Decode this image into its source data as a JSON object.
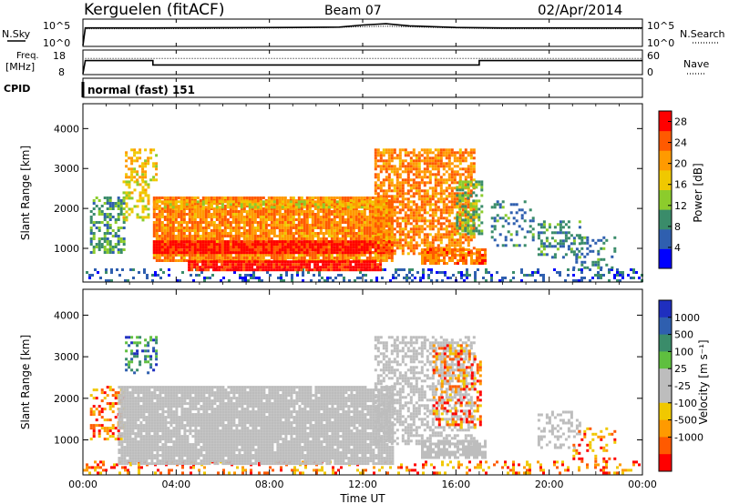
{
  "header": {
    "station": "Kerguelen (fitACF)",
    "beam": "Beam 07",
    "date": "02/Apr/2014"
  },
  "noise_panel": {
    "left_label": "N.Sky",
    "left_ticks": [
      "10^5",
      "10^0"
    ],
    "right_label": "N.Search",
    "right_ticks": [
      "10^5",
      "10^0"
    ]
  },
  "freq_panel": {
    "left_label_1": "Freq.",
    "left_label_2": "[MHz]",
    "left_ticks": [
      "18",
      "8"
    ],
    "right_label": "Nave",
    "right_ticks": [
      "60",
      "0"
    ]
  },
  "cpid_panel": {
    "label": "CPID",
    "text": "normal (fast) 151"
  },
  "x_axis": {
    "label": "Time UT",
    "ticks": [
      "00:00",
      "04:00",
      "08:00",
      "12:00",
      "16:00",
      "20:00",
      "00:00"
    ]
  },
  "colors": {
    "power_scale": [
      "#0000ff",
      "#2f5faf",
      "#3a8c6a",
      "#8ccc2c",
      "#f0c800",
      "#ff9a00",
      "#ff5a00",
      "#ff0000"
    ],
    "velocity_scale": [
      "#ff0000",
      "#ff5a00",
      "#ff9a00",
      "#f0c800",
      "#bdbdbd",
      "#bdbdbd",
      "#5fbf3f",
      "#3a8c6a",
      "#2f5faf",
      "#1f2fbf"
    ],
    "ground_scatter": "#bdbdbd"
  },
  "chart_data": [
    {
      "type": "line",
      "name": "noise",
      "x_range_hours": [
        0,
        24
      ],
      "x": [
        0.0,
        0.1,
        1,
        3,
        6,
        9,
        11,
        12,
        13,
        14,
        16,
        18,
        20,
        22,
        24
      ],
      "series": [
        {
          "values": [
            0,
            4.2,
            4.2,
            4.2,
            4.25,
            4.3,
            4.4,
            4.9,
            5.2,
            4.7,
            4.3,
            4.2,
            4.2,
            4.2,
            4.2
          ]
        },
        {
          "values": [
            0,
            4.0,
            4.0,
            4.0,
            4.05,
            4.2,
            4.35,
            4.5,
            4.6,
            4.45,
            4.2,
            4.0,
            4.0,
            4.0,
            4.0
          ]
        }
      ],
      "ylim": [
        0,
        5
      ]
    },
    {
      "type": "line",
      "name": "frequency",
      "x_range_hours": [
        0,
        24
      ],
      "x": [
        0,
        0.1,
        3.0,
        3.0,
        17.0,
        17.0,
        24
      ],
      "series": [
        {
          "values": [
            8,
            14,
            14,
            12,
            12,
            14,
            14
          ]
        }
      ],
      "nave_level": 15,
      "ylim": [
        8,
        18
      ]
    },
    {
      "type": "heatmap",
      "name": "power",
      "ylabel": "Slant Range [km]",
      "colorbar_label": "Power [dB]",
      "colorbar_ticks": [
        4,
        8,
        12,
        16,
        20,
        24,
        28
      ],
      "clim": [
        0,
        30
      ],
      "xlim": [
        0,
        24
      ],
      "ylim": [
        180,
        4600
      ],
      "yticks": [
        1000,
        2000,
        3000,
        4000
      ],
      "regions": [
        {
          "t": [
            0.0,
            24.0
          ],
          "r": [
            180,
            500
          ],
          "v": 6,
          "d": 0.28
        },
        {
          "t": [
            0.3,
            1.8
          ],
          "r": [
            900,
            2300
          ],
          "v": 10,
          "d": 0.55
        },
        {
          "t": [
            1.7,
            2.8
          ],
          "r": [
            1700,
            2700
          ],
          "v": 16,
          "d": 0.5
        },
        {
          "t": [
            1.8,
            3.2
          ],
          "r": [
            2700,
            3500
          ],
          "v": 18,
          "d": 0.45
        },
        {
          "t": [
            3.0,
            13.3
          ],
          "r": [
            700,
            2300
          ],
          "v": 22,
          "d": 0.92
        },
        {
          "t": [
            3.0,
            13.3
          ],
          "r": [
            900,
            1200
          ],
          "v": 28,
          "d": 0.98
        },
        {
          "t": [
            4.5,
            12.8
          ],
          "r": [
            450,
            700
          ],
          "v": 28,
          "d": 0.95
        },
        {
          "t": [
            3.0,
            13.3
          ],
          "r": [
            2000,
            2200
          ],
          "v": 17,
          "d": 0.7
        },
        {
          "t": [
            12.5,
            16.8
          ],
          "r": [
            900,
            3500
          ],
          "v": 22,
          "d": 0.72
        },
        {
          "t": [
            14.5,
            17.2
          ],
          "r": [
            600,
            1000
          ],
          "v": 23,
          "d": 0.82
        },
        {
          "t": [
            16.0,
            17.1
          ],
          "r": [
            1400,
            2700
          ],
          "v": 12,
          "d": 0.6
        },
        {
          "t": [
            17.5,
            19.3
          ],
          "r": [
            1100,
            2200
          ],
          "v": 8,
          "d": 0.25
        },
        {
          "t": [
            19.5,
            21.3
          ],
          "r": [
            800,
            1700
          ],
          "v": 9,
          "d": 0.4
        },
        {
          "t": [
            21.0,
            22.8
          ],
          "r": [
            500,
            1300
          ],
          "v": 8,
          "d": 0.3
        }
      ]
    },
    {
      "type": "heatmap",
      "name": "velocity",
      "ylabel": "Slant Range [km]",
      "colorbar_label": "Velocity [m s⁻¹]",
      "colorbar_ticks": [
        "1000",
        "500",
        "100",
        "25",
        "-25",
        "-100",
        "-500",
        "-1000"
      ],
      "xlim": [
        0,
        24
      ],
      "ylim": [
        180,
        4600
      ],
      "yticks": [
        1000,
        2000,
        3000,
        4000
      ],
      "regions": [
        {
          "t": [
            0.0,
            24.0
          ],
          "r": [
            180,
            500
          ],
          "v": -200,
          "d": 0.25
        },
        {
          "t": [
            0.3,
            1.8
          ],
          "r": [
            1000,
            2300
          ],
          "v": -300,
          "d": 0.4
        },
        {
          "t": [
            1.8,
            3.2
          ],
          "r": [
            2600,
            3500
          ],
          "v": 150,
          "d": 0.35
        },
        {
          "t": [
            1.5,
            13.3
          ],
          "r": [
            400,
            2300
          ],
          "v": 0,
          "d": 0.92
        },
        {
          "t": [
            12.5,
            16.8
          ],
          "r": [
            900,
            3500
          ],
          "v": 0,
          "d": 0.55
        },
        {
          "t": [
            14.5,
            17.2
          ],
          "r": [
            600,
            1000
          ],
          "v": 0,
          "d": 0.8
        },
        {
          "t": [
            15.0,
            17.1
          ],
          "r": [
            1300,
            3300
          ],
          "v": -200,
          "d": 0.35
        },
        {
          "t": [
            19.5,
            21.3
          ],
          "r": [
            800,
            1700
          ],
          "v": 0,
          "d": 0.4
        },
        {
          "t": [
            21.0,
            22.8
          ],
          "r": [
            500,
            1300
          ],
          "v": -100,
          "d": 0.25
        }
      ]
    }
  ]
}
